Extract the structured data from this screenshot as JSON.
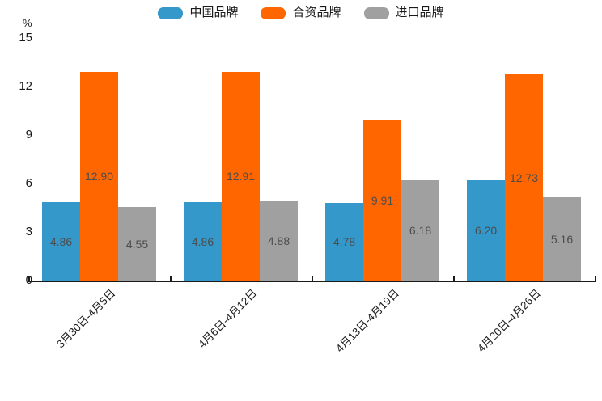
{
  "chart_data": {
    "type": "bar",
    "title": "",
    "ylabel": "%",
    "xlabel": "",
    "ylim": [
      0,
      15
    ],
    "yticks": [
      0,
      3,
      6,
      9,
      12,
      15
    ],
    "grid": false,
    "legend_position": "top",
    "background_color": "#ffffff",
    "axis_color": "#1a1a1a",
    "value_label_color": "#4d4d4d",
    "categories": [
      "3月30日-4月5日",
      "4月6日-4月12日",
      "4月13日-4月19日",
      "4月20日-4月26日"
    ],
    "series": [
      {
        "name": "中国品牌",
        "color": "#3498cb",
        "values": [
          4.86,
          4.86,
          4.78,
          6.2
        ]
      },
      {
        "name": "合资品牌",
        "color": "#ff6600",
        "values": [
          12.9,
          12.91,
          9.91,
          12.73
        ]
      },
      {
        "name": "进口品牌",
        "color": "#a0a0a0",
        "values": [
          4.55,
          4.88,
          6.18,
          5.16
        ]
      }
    ]
  }
}
